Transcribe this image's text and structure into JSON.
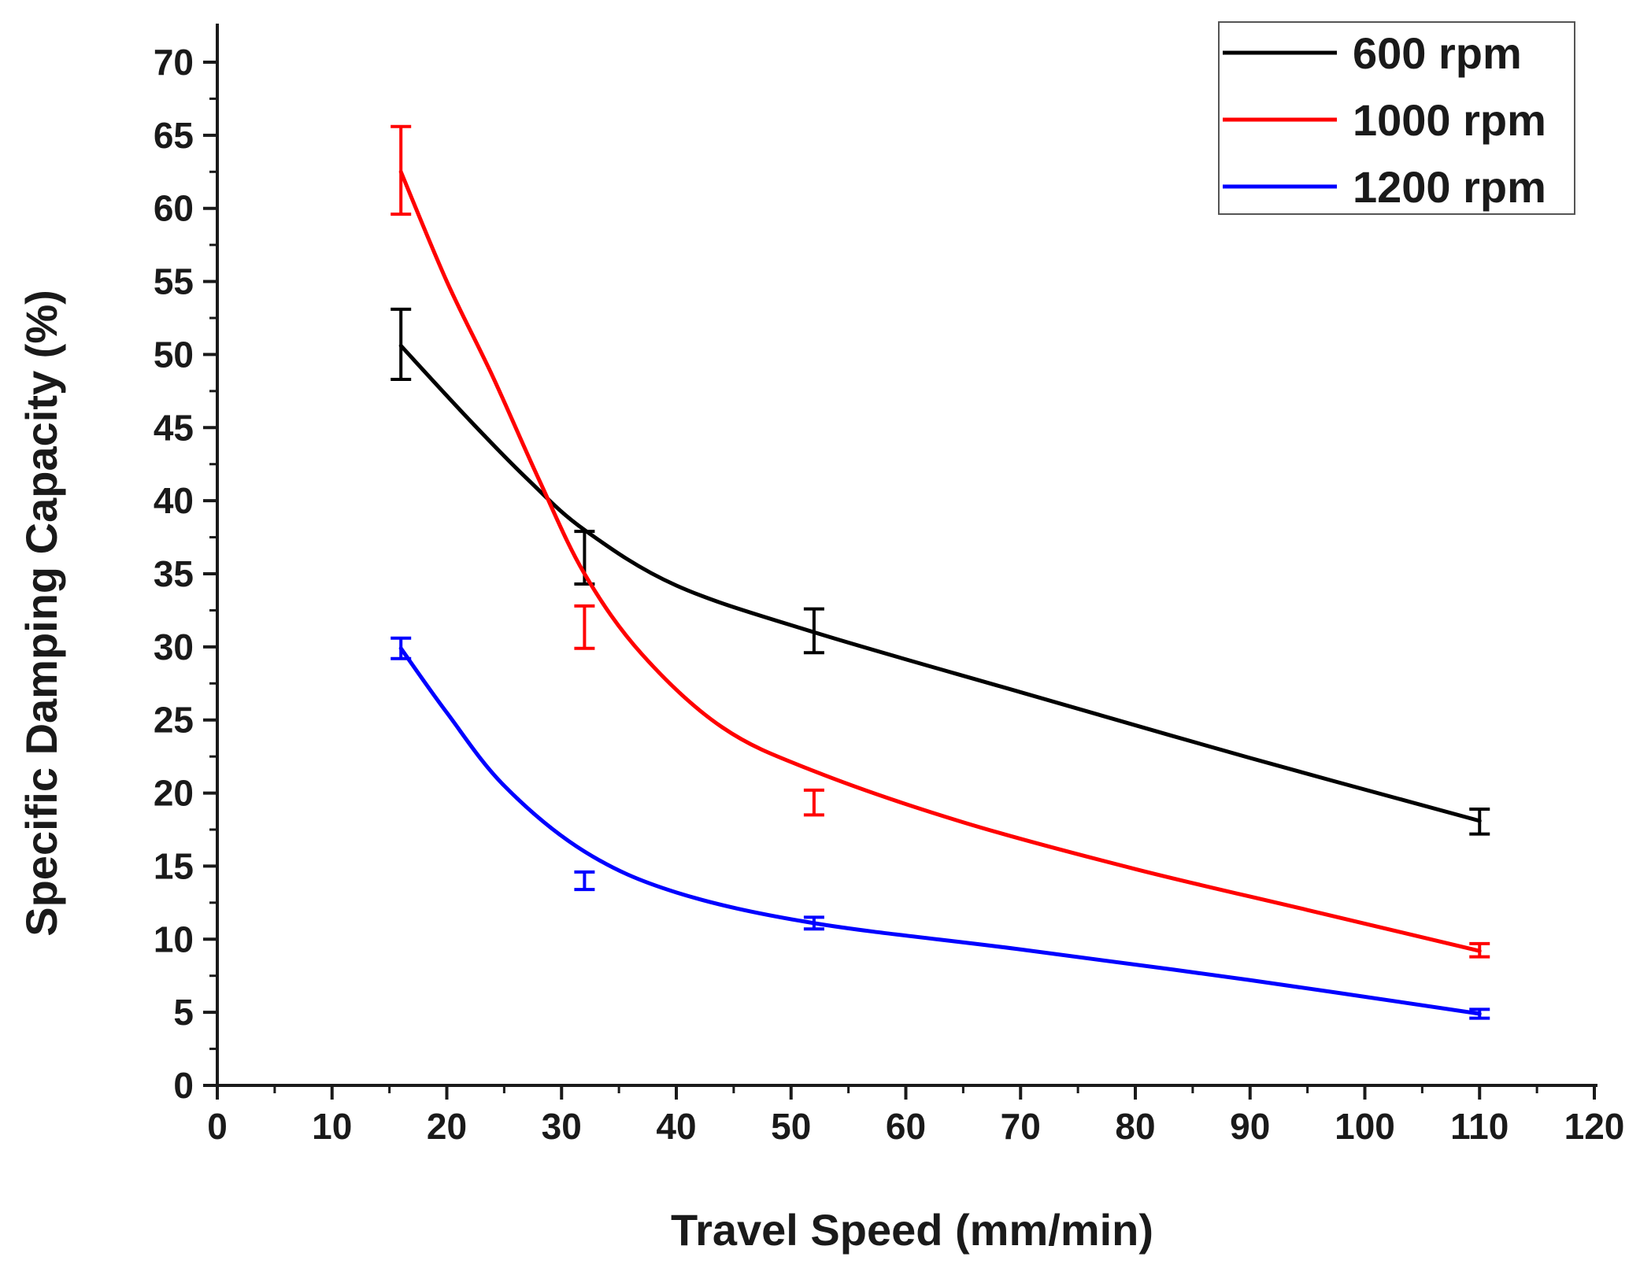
{
  "chart_data": {
    "type": "line",
    "title": "",
    "xlabel": "Travel Speed (mm/min)",
    "ylabel": "Specific Damping Capacity (%)",
    "xlim": [
      0,
      120
    ],
    "ylim": [
      0,
      70
    ],
    "xticks": [
      0,
      10,
      20,
      30,
      40,
      50,
      60,
      70,
      80,
      90,
      100,
      110,
      120
    ],
    "yticks": [
      0,
      5,
      10,
      15,
      20,
      25,
      30,
      35,
      40,
      45,
      50,
      55,
      60,
      65,
      70
    ],
    "grid": false,
    "legend_position": "top-right",
    "series": [
      {
        "name": "600 rpm",
        "color": "#000000",
        "points": [
          {
            "x": 16,
            "y": 50.6,
            "err_low": 48.3,
            "err_high": 53.1
          },
          {
            "x": 32,
            "y": 36.0,
            "err_low": 34.3,
            "err_high": 37.9
          },
          {
            "x": 52,
            "y": 31.0,
            "err_low": 29.6,
            "err_high": 32.6
          },
          {
            "x": 110,
            "y": 18.1,
            "err_low": 17.2,
            "err_high": 18.9
          }
        ],
        "curve": [
          [
            16,
            50.6
          ],
          [
            22,
            45.5
          ],
          [
            27,
            41.5
          ],
          [
            32,
            38.0
          ],
          [
            40,
            34.2
          ],
          [
            52,
            31.0
          ],
          [
            70,
            26.9
          ],
          [
            90,
            22.4
          ],
          [
            110,
            18.1
          ]
        ]
      },
      {
        "name": "1000 rpm",
        "color": "#ff0000",
        "points": [
          {
            "x": 16,
            "y": 62.5,
            "err_low": 59.6,
            "err_high": 65.6
          },
          {
            "x": 32,
            "y": 31.4,
            "err_low": 29.9,
            "err_high": 32.8
          },
          {
            "x": 52,
            "y": 19.4,
            "err_low": 18.5,
            "err_high": 20.2
          },
          {
            "x": 110,
            "y": 9.2,
            "err_low": 8.8,
            "err_high": 9.7
          }
        ],
        "curve": [
          [
            16,
            62.5
          ],
          [
            20,
            55.0
          ],
          [
            24,
            48.5
          ],
          [
            28,
            41.5
          ],
          [
            32,
            35.0
          ],
          [
            37,
            29.5
          ],
          [
            44,
            24.5
          ],
          [
            52,
            21.5
          ],
          [
            65,
            18.0
          ],
          [
            80,
            14.8
          ],
          [
            95,
            12.0
          ],
          [
            110,
            9.2
          ]
        ]
      },
      {
        "name": "1200 rpm",
        "color": "#0000ff",
        "points": [
          {
            "x": 16,
            "y": 29.9,
            "err_low": 29.2,
            "err_high": 30.6
          },
          {
            "x": 32,
            "y": 14.0,
            "err_low": 13.4,
            "err_high": 14.6
          },
          {
            "x": 52,
            "y": 11.1,
            "err_low": 10.7,
            "err_high": 11.5
          },
          {
            "x": 110,
            "y": 4.9,
            "err_low": 4.6,
            "err_high": 5.2
          }
        ],
        "curve": [
          [
            16,
            29.9
          ],
          [
            20,
            25.5
          ],
          [
            25,
            20.5
          ],
          [
            32,
            16.0
          ],
          [
            40,
            13.2
          ],
          [
            52,
            11.1
          ],
          [
            70,
            9.3
          ],
          [
            90,
            7.2
          ],
          [
            110,
            4.9
          ]
        ]
      }
    ]
  }
}
